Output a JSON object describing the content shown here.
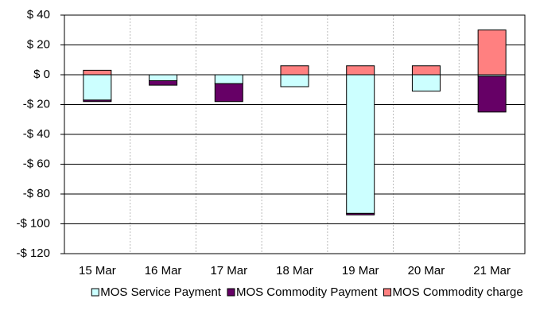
{
  "chart_data": {
    "type": "bar",
    "stacked": true,
    "categories": [
      "15 Mar",
      "16 Mar",
      "17 Mar",
      "18 Mar",
      "19 Mar",
      "20 Mar",
      "21 Mar"
    ],
    "series": [
      {
        "name": "MOS Service Payment",
        "color": "#ccffff",
        "values": [
          -17,
          -4,
          -6,
          -8,
          -93,
          -11,
          -1
        ]
      },
      {
        "name": "MOS Commodity Payment",
        "color": "#660066",
        "values": [
          -1,
          -3,
          -12,
          0,
          -1,
          0,
          -24
        ]
      },
      {
        "name": "MOS Commodity charge",
        "color": "#ff8080",
        "values": [
          3,
          0,
          0,
          6,
          6,
          6,
          30
        ]
      }
    ],
    "ylim": [
      -120,
      40
    ],
    "yticks": [
      {
        "value": -120,
        "label": "-$ 120"
      },
      {
        "value": -100,
        "label": "-$ 100"
      },
      {
        "value": -80,
        "label": "-$ 80"
      },
      {
        "value": -60,
        "label": "-$ 60"
      },
      {
        "value": -40,
        "label": "-$ 40"
      },
      {
        "value": -20,
        "label": "-$ 20"
      },
      {
        "value": 0,
        "label": "$ 0"
      },
      {
        "value": 20,
        "label": "$ 20"
      },
      {
        "value": 40,
        "label": "$ 40"
      }
    ],
    "grid": true,
    "legend": "bottom"
  }
}
